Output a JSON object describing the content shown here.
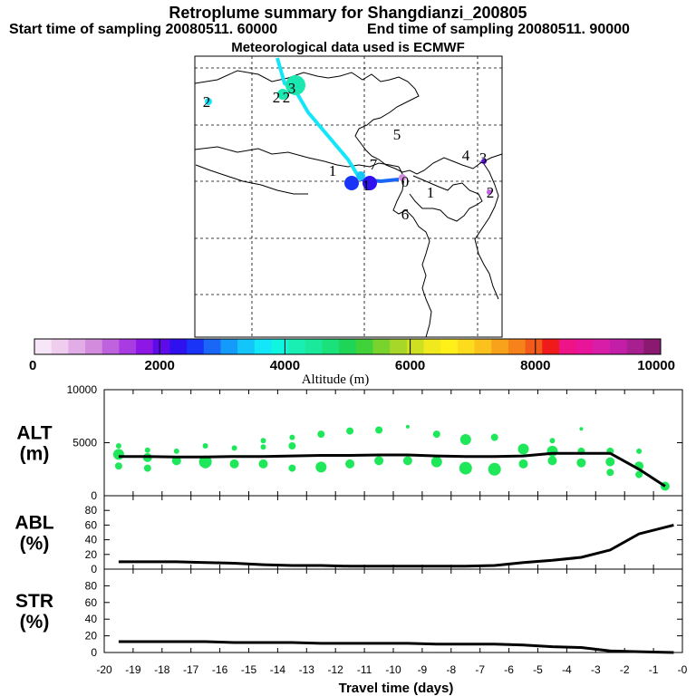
{
  "header": {
    "title": "Retroplume summary for Shangdianzi_200805",
    "start_label": "Start time of sampling 20080511. 60000",
    "end_label": "End time of sampling 20080511. 90000",
    "met_label": "Meteorological data used is ECMWF"
  },
  "colorbar": {
    "colors": [
      "#f7e6f7",
      "#efcdef",
      "#e2ade6",
      "#d38cdd",
      "#bf62dd",
      "#a93be2",
      "#8f17e6",
      "#5d0be8",
      "#2f10ef",
      "#1a34f7",
      "#1a66f7",
      "#149bfa",
      "#14c5fa",
      "#14e6fa",
      "#0ff5e0",
      "#1aefb3",
      "#1ae89a",
      "#1ae17a",
      "#1ed558",
      "#41d23a",
      "#78d42d",
      "#a7d728",
      "#cfe020",
      "#efe91e",
      "#fff01a",
      "#fddc1e",
      "#fbc21e",
      "#f7a21a",
      "#f5821a",
      "#f25a1a",
      "#ef1a1a",
      "#ee1488",
      "#e8149a",
      "#d81ea8",
      "#c21ea8",
      "#a8208f",
      "#8a1a70"
    ],
    "tick_labels": [
      "0",
      "2000",
      "4000",
      "6000",
      "8000",
      "10000"
    ],
    "label": "Altitude (m)"
  },
  "map": {
    "numbers": [
      {
        "t": "2",
        "c": "#000"
      },
      {
        "t": "2",
        "c": "#000"
      },
      {
        "t": "2",
        "c": "#000"
      },
      {
        "t": "3",
        "c": "#000"
      },
      {
        "t": "1",
        "c": "#000"
      },
      {
        "t": "7",
        "c": "#000"
      },
      {
        "t": "5",
        "c": "#000"
      },
      {
        "t": "4",
        "c": "#000"
      },
      {
        "t": "3",
        "c": "#000"
      },
      {
        "t": "1",
        "c": "#000"
      },
      {
        "t": "6",
        "c": "#000"
      },
      {
        "t": "2",
        "c": "#000"
      },
      {
        "t": "0",
        "c": "#000"
      },
      {
        "t": "1",
        "c": "#000"
      }
    ]
  },
  "chart_data": [
    {
      "type": "scatter",
      "panel_label": "ALT (m)",
      "panel_label_line1": "ALT",
      "panel_label_line2": "(m)",
      "ylim": [
        0,
        10000
      ],
      "yticks": [
        "0",
        "5000",
        "10000"
      ],
      "xlim": [
        -20,
        0
      ],
      "mean_line": {
        "x": [
          -19.5,
          -18.5,
          -17.5,
          -16.5,
          -15.5,
          -14.5,
          -13.5,
          -12.5,
          -11.5,
          -10.5,
          -9.5,
          -8.5,
          -7.5,
          -6.5,
          -5.5,
          -4.5,
          -3.5,
          -2.5,
          -1.5,
          -0.6
        ],
        "y": [
          3700,
          3700,
          3650,
          3650,
          3700,
          3700,
          3750,
          3800,
          3800,
          3850,
          3850,
          3750,
          3700,
          3700,
          3750,
          4000,
          4000,
          4000,
          2500,
          900
        ]
      },
      "points": {
        "x": [
          -19.5,
          -19.5,
          -19.5,
          -18.5,
          -18.5,
          -18.5,
          -17.5,
          -17.5,
          -16.5,
          -16.5,
          -16.5,
          -15.5,
          -15.5,
          -14.5,
          -14.5,
          -14.5,
          -13.5,
          -13.5,
          -13.5,
          -12.5,
          -12.5,
          -11.5,
          -11.5,
          -10.5,
          -10.5,
          -9.5,
          -9.5,
          -8.5,
          -8.5,
          -7.5,
          -7.5,
          -6.5,
          -6.5,
          -5.5,
          -5.5,
          -4.5,
          -4.5,
          -4.5,
          -3.5,
          -3.5,
          -3.5,
          -2.5,
          -2.5,
          -2.5,
          -1.5,
          -1.5,
          -1.5,
          -0.6
        ],
        "y": [
          4700,
          3900,
          2800,
          4300,
          3600,
          2600,
          4200,
          3300,
          4700,
          3200,
          3000,
          4500,
          3000,
          5200,
          4600,
          3000,
          5500,
          4700,
          2600,
          5800,
          2700,
          6100,
          3000,
          6200,
          3300,
          6500,
          3300,
          5800,
          3200,
          5300,
          2600,
          5500,
          2500,
          4400,
          3000,
          5200,
          4200,
          3300,
          6300,
          4200,
          3100,
          4200,
          3200,
          2200,
          4200,
          2800,
          2000,
          900
        ],
        "size": [
          3,
          6,
          4,
          3,
          5,
          4,
          3,
          5,
          3,
          7,
          5,
          3,
          5,
          3,
          3,
          5,
          3,
          4,
          4,
          4,
          6,
          4,
          5,
          4,
          5,
          2,
          5,
          4,
          6,
          6,
          7,
          4,
          7,
          6,
          5,
          3,
          6,
          5,
          2,
          4,
          5,
          4,
          5,
          4,
          3,
          5,
          4,
          5
        ]
      },
      "xticks": [
        "-20",
        "-19",
        "-18",
        "-17",
        "-16",
        "-15",
        "-14",
        "-13",
        "-12",
        "-11",
        "-10",
        "-9",
        "-8",
        "-7",
        "-6",
        "-5",
        "-4",
        "-3",
        "-2",
        "-1",
        "-0"
      ]
    },
    {
      "type": "line",
      "panel_label": "ABL (%)",
      "panel_label_line1": "ABL",
      "panel_label_line2": "(%)",
      "ylim": [
        0,
        100
      ],
      "yticks": [
        "0",
        "20",
        "40",
        "60",
        "80"
      ],
      "x": [
        -19.5,
        -18.5,
        -17.5,
        -16.5,
        -15.5,
        -14.5,
        -13.5,
        -12.5,
        -11.5,
        -10.5,
        -9.5,
        -8.5,
        -7.5,
        -6.5,
        -5.5,
        -4.5,
        -3.5,
        -2.5,
        -1.5,
        -0.3
      ],
      "y": [
        10,
        10,
        10,
        9,
        8,
        6,
        5,
        5,
        4,
        4,
        4,
        4,
        4,
        5,
        9,
        12,
        16,
        26,
        48,
        60
      ]
    },
    {
      "type": "line",
      "panel_label": "STR (%)",
      "panel_label_line1": "STR",
      "panel_label_line2": "(%)",
      "ylim": [
        0,
        100
      ],
      "yticks": [
        "0",
        "20",
        "40",
        "60",
        "80"
      ],
      "x": [
        -19.5,
        -18.5,
        -17.5,
        -16.5,
        -15.5,
        -14.5,
        -13.5,
        -12.5,
        -11.5,
        -10.5,
        -9.5,
        -8.5,
        -7.5,
        -6.5,
        -5.5,
        -4.5,
        -3.5,
        -2.5,
        -1.5,
        -0.3
      ],
      "y": [
        13,
        13,
        13,
        13,
        12,
        12,
        12,
        11,
        11,
        11,
        11,
        10,
        10,
        10,
        9,
        7,
        6,
        2,
        1,
        0
      ],
      "xticks": [
        "-20",
        "-19",
        "-18",
        "-17",
        "-16",
        "-15",
        "-14",
        "-13",
        "-12",
        "-11",
        "-10",
        "-9",
        "-8",
        "-7",
        "-6",
        "-5",
        "-4",
        "-3",
        "-2",
        "-1",
        "-0"
      ],
      "xlabel": "Travel time (days)"
    }
  ]
}
